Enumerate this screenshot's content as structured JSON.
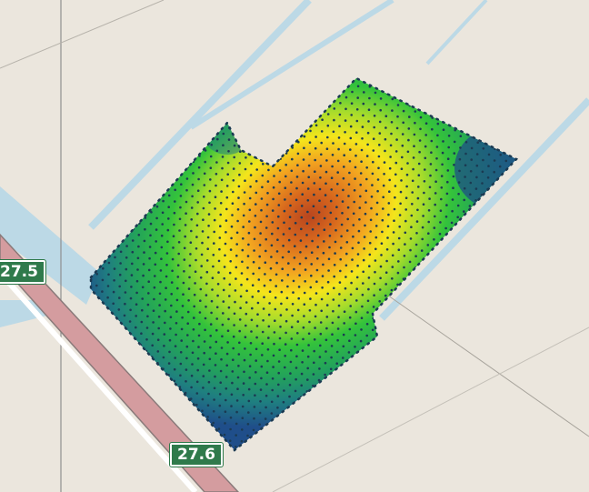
{
  "map": {
    "road_labels": [
      {
        "id": "a",
        "text": "27.5"
      },
      {
        "id": "b",
        "text": "27.6"
      }
    ],
    "heatmap": {
      "palette": [
        "#1f4e8a",
        "#1f7f80",
        "#23a35a",
        "#34c33b",
        "#a6dc2c",
        "#f4e51b",
        "#f2a320",
        "#d7671d",
        "#b8461f"
      ],
      "hotspot_color": "#b8461f",
      "edge_color": "#1d4f86"
    },
    "colors": {
      "land": "#ebe6dd",
      "water": "#bcd9e6",
      "road_fill": "#d49c9f",
      "road_edge": "#8a7a7a",
      "sample_point": "#1b3a52"
    }
  }
}
